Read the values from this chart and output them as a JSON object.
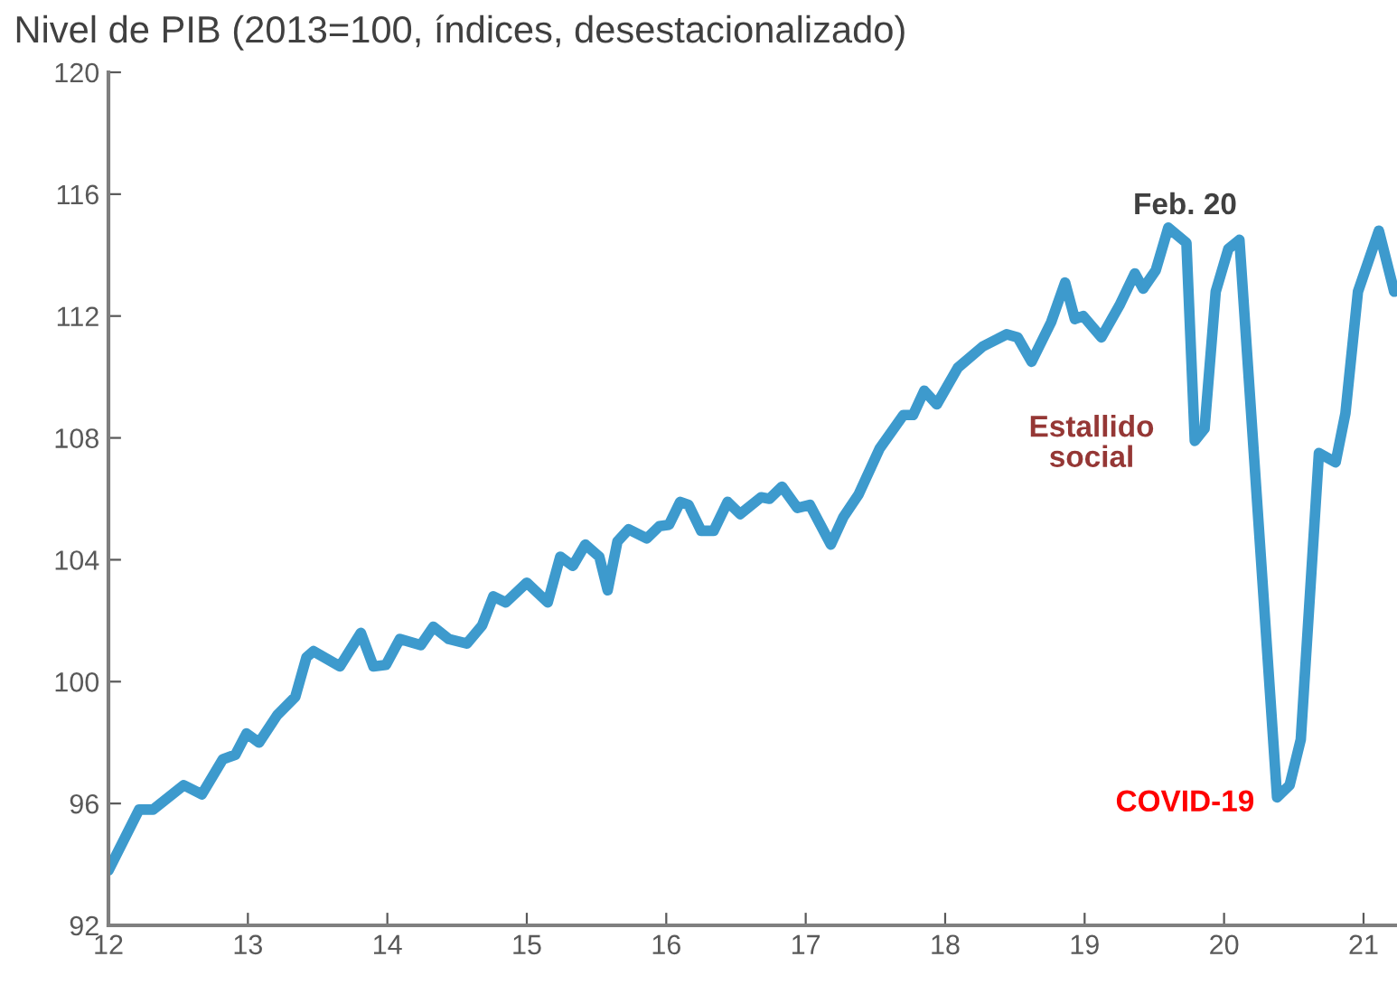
{
  "chart_data": {
    "type": "line",
    "title": "Nivel de PIB (2013=100, índices, desestacionalizado)",
    "x": [
      12.0,
      12.22,
      12.32,
      12.54,
      12.67,
      12.82,
      12.91,
      12.99,
      13.08,
      13.21,
      13.34,
      13.42,
      13.47,
      13.66,
      13.81,
      13.9,
      13.99,
      14.09,
      14.24,
      14.33,
      14.44,
      14.57,
      14.68,
      14.76,
      14.85,
      15.0,
      15.15,
      15.24,
      15.33,
      15.42,
      15.52,
      15.58,
      15.65,
      15.73,
      15.86,
      15.95,
      16.02,
      16.1,
      16.16,
      16.25,
      16.34,
      16.44,
      16.53,
      16.68,
      16.74,
      16.83,
      16.94,
      17.03,
      17.18,
      17.27,
      17.38,
      17.53,
      17.7,
      17.77,
      17.85,
      17.94,
      18.09,
      18.27,
      18.44,
      18.52,
      18.62,
      18.76,
      18.86,
      18.93,
      18.99,
      19.12,
      19.25,
      19.36,
      19.42,
      19.51,
      19.6,
      19.73,
      19.79,
      19.86,
      19.94,
      20.03,
      20.11,
      20.38,
      20.47,
      20.55,
      20.68,
      20.8,
      20.87,
      20.96,
      21.11,
      21.22
    ],
    "series": [
      {
        "color": "#3d9acd",
        "values": [
          93.8,
          95.8,
          95.8,
          96.6,
          96.3,
          97.45,
          97.6,
          98.3,
          98.0,
          98.9,
          99.5,
          100.8,
          101.0,
          100.5,
          101.6,
          100.5,
          100.55,
          101.4,
          101.2,
          101.8,
          101.4,
          101.25,
          101.85,
          102.8,
          102.6,
          103.25,
          102.6,
          104.1,
          103.8,
          104.5,
          104.1,
          103.0,
          104.6,
          105.0,
          104.7,
          105.1,
          105.15,
          105.9,
          105.8,
          104.95,
          104.95,
          105.9,
          105.5,
          106.05,
          106.0,
          106.4,
          105.7,
          105.8,
          104.5,
          105.4,
          106.15,
          107.65,
          108.75,
          108.75,
          109.55,
          109.1,
          110.3,
          111.0,
          111.4,
          111.3,
          110.5,
          111.8,
          113.1,
          111.9,
          112.0,
          111.3,
          112.35,
          113.4,
          112.9,
          113.5,
          114.9,
          114.4,
          107.9,
          108.3,
          112.8,
          114.2,
          114.5,
          96.2,
          96.6,
          98.1,
          107.5,
          107.2,
          108.8,
          112.8,
          114.8,
          112.8
        ]
      }
    ],
    "xlim": [
      12,
      21.24
    ],
    "xticks": [
      12,
      13,
      14,
      15,
      16,
      17,
      18,
      19,
      20,
      21
    ],
    "ylim": [
      92,
      120
    ],
    "yticks": [
      92,
      96,
      100,
      104,
      108,
      112,
      116,
      120
    ],
    "grid": false,
    "legend": false,
    "marker": "none",
    "line_style": "solid",
    "annotations": [
      "Feb. 20",
      "Estallido\nsocial",
      "COVID-19"
    ]
  }
}
